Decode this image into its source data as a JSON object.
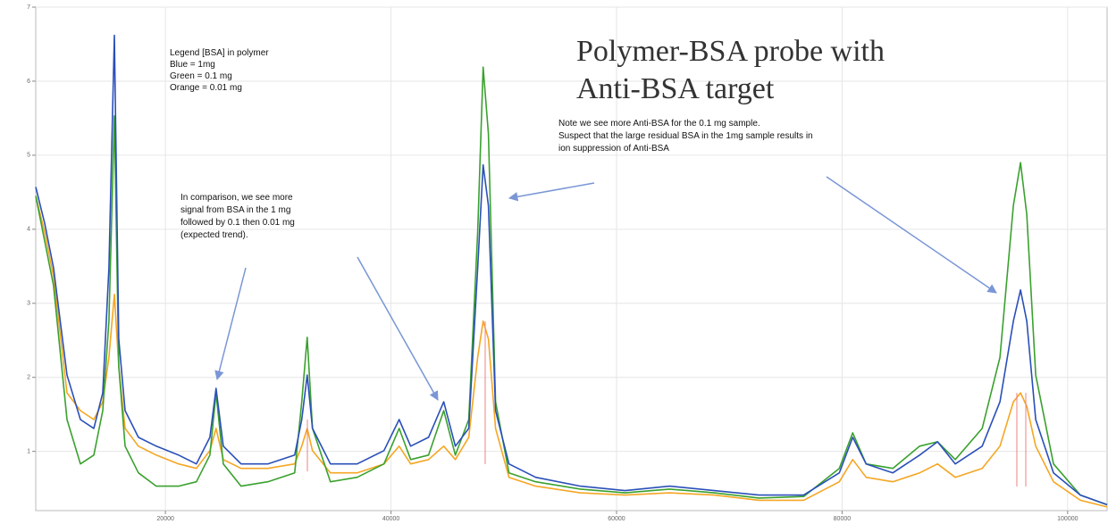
{
  "chart_data": {
    "type": "line",
    "title": [
      "Polymer-BSA probe with",
      "Anti-BSA target"
    ],
    "annotations": {
      "legend_note": [
        "Legend [BSA] in polymer",
        "Blue = 1mg",
        "Green = 0.1 mg",
        "Orange = 0.01 mg"
      ],
      "comparison_note": [
        "In comparison, we see more",
        "signal from BSA in the 1 mg",
        "followed by 0.1 then 0.01 mg",
        "(expected trend)."
      ],
      "anti_bsa_note": [
        "Note we see more Anti-BSA for the 0.1 mg sample.",
        "Suspect that the large residual BSA in the 1mg sample results in",
        "ion suppression of Anti-BSA"
      ]
    },
    "x": [
      8500,
      9290,
      10080,
      11270,
      12460,
      13650,
      14440,
      14990,
      15470,
      15860,
      16420,
      17600,
      19190,
      21170,
      22750,
      23940,
      24490,
      25130,
      26710,
      29080,
      31460,
      32090,
      32570,
      33040,
      34630,
      37000,
      39380,
      40720,
      41750,
      43330,
      44680,
      45710,
      46900,
      47690,
      48170,
      48640,
      49270,
      50460,
      52830,
      56790,
      60750,
      64710,
      68670,
      72630,
      76590,
      79750,
      80940,
      82130,
      84500,
      86880,
      88460,
      90040,
      92420,
      94000,
      95190,
      95820,
      96380,
      97170,
      98750,
      101130,
      103500
    ],
    "series": [
      {
        "color": "#f5a623",
        "values": [
          4.45,
          3.96,
          3.36,
          1.79,
          1.55,
          1.43,
          1.67,
          2.27,
          3.12,
          2.15,
          1.31,
          1.07,
          0.95,
          0.83,
          0.77,
          1.01,
          1.31,
          0.89,
          0.77,
          0.77,
          0.83,
          1.07,
          1.31,
          1.01,
          0.71,
          0.71,
          0.83,
          1.07,
          0.83,
          0.89,
          1.07,
          0.89,
          1.19,
          2.27,
          2.76,
          2.52,
          1.31,
          0.65,
          0.53,
          0.44,
          0.41,
          0.44,
          0.41,
          0.34,
          0.34,
          0.59,
          0.89,
          0.65,
          0.59,
          0.71,
          0.83,
          0.65,
          0.77,
          1.07,
          1.67,
          1.79,
          1.61,
          1.07,
          0.59,
          0.34,
          0.25
        ]
      },
      {
        "color": "#3aa12e",
        "values": [
          4.45,
          3.84,
          3.24,
          1.43,
          0.83,
          0.95,
          1.55,
          2.76,
          5.53,
          2.15,
          1.07,
          0.71,
          0.53,
          0.53,
          0.59,
          0.95,
          1.79,
          0.83,
          0.53,
          0.59,
          0.71,
          1.67,
          2.54,
          1.31,
          0.59,
          0.65,
          0.83,
          1.31,
          0.89,
          0.95,
          1.55,
          0.95,
          1.43,
          3.96,
          6.19,
          5.29,
          1.67,
          0.71,
          0.59,
          0.49,
          0.44,
          0.49,
          0.44,
          0.37,
          0.39,
          0.77,
          1.25,
          0.83,
          0.77,
          1.07,
          1.13,
          0.89,
          1.31,
          2.27,
          4.32,
          4.9,
          4.2,
          2.03,
          0.83,
          0.41,
          0.28
        ]
      },
      {
        "color": "#2a4fb8",
        "values": [
          4.57,
          4.08,
          3.48,
          2.03,
          1.43,
          1.31,
          1.79,
          3.48,
          6.62,
          2.52,
          1.55,
          1.19,
          1.07,
          0.95,
          0.83,
          1.19,
          1.85,
          1.07,
          0.83,
          0.83,
          0.95,
          1.43,
          2.03,
          1.31,
          0.83,
          0.83,
          1.01,
          1.43,
          1.07,
          1.19,
          1.67,
          1.07,
          1.31,
          3.48,
          4.87,
          4.32,
          1.55,
          0.83,
          0.65,
          0.53,
          0.47,
          0.53,
          0.47,
          0.41,
          0.41,
          0.71,
          1.19,
          0.83,
          0.71,
          0.95,
          1.13,
          0.83,
          1.07,
          1.67,
          2.76,
          3.18,
          2.76,
          1.43,
          0.71,
          0.41,
          0.28
        ]
      }
    ],
    "xlim": [
      8500,
      103500
    ],
    "ylim": [
      0.2,
      7.0
    ],
    "xticks": [
      20000,
      40000,
      60000,
      80000,
      100000
    ],
    "yticks": [
      1,
      2,
      3,
      4,
      5,
      6,
      7
    ],
    "grid": true
  }
}
